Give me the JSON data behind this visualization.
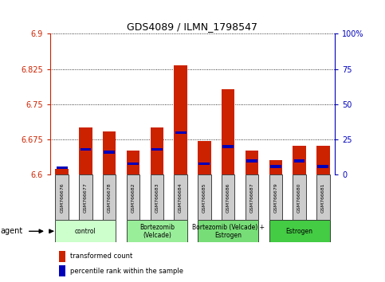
{
  "title": "GDS4089 / ILMN_1798547",
  "samples": [
    "GSM766676",
    "GSM766677",
    "GSM766678",
    "GSM766682",
    "GSM766683",
    "GSM766684",
    "GSM766685",
    "GSM766686",
    "GSM766687",
    "GSM766679",
    "GSM766680",
    "GSM766681"
  ],
  "red_values": [
    6.612,
    6.7,
    6.692,
    6.652,
    6.7,
    6.833,
    6.672,
    6.783,
    6.652,
    6.632,
    6.662,
    6.662
  ],
  "blue_percentiles": [
    5,
    18,
    16,
    8,
    18,
    30,
    8,
    20,
    10,
    6,
    10,
    6
  ],
  "ylim_left": [
    6.6,
    6.9
  ],
  "yticks_left": [
    6.6,
    6.675,
    6.75,
    6.825,
    6.9
  ],
  "yticks_right": [
    0,
    25,
    50,
    75,
    100
  ],
  "groups": [
    {
      "label": "control",
      "start": 0,
      "end": 3,
      "color": "#ccffcc"
    },
    {
      "label": "Bortezomib\n(Velcade)",
      "start": 3,
      "end": 6,
      "color": "#99ee99"
    },
    {
      "label": "Bortezomib (Velcade) +\nEstrogen",
      "start": 6,
      "end": 9,
      "color": "#77dd77"
    },
    {
      "label": "Estrogen",
      "start": 9,
      "end": 12,
      "color": "#44cc44"
    }
  ],
  "bar_width": 0.55,
  "bar_bottom": 6.6,
  "red_color": "#cc2200",
  "blue_color": "#0000bb",
  "bg_color": "white",
  "tick_color_left": "#cc2200",
  "tick_color_right": "#0000bb",
  "legend_red": "transformed count",
  "legend_blue": "percentile rank within the sample",
  "agent_label": "agent",
  "gray_box_color": "#cccccc"
}
